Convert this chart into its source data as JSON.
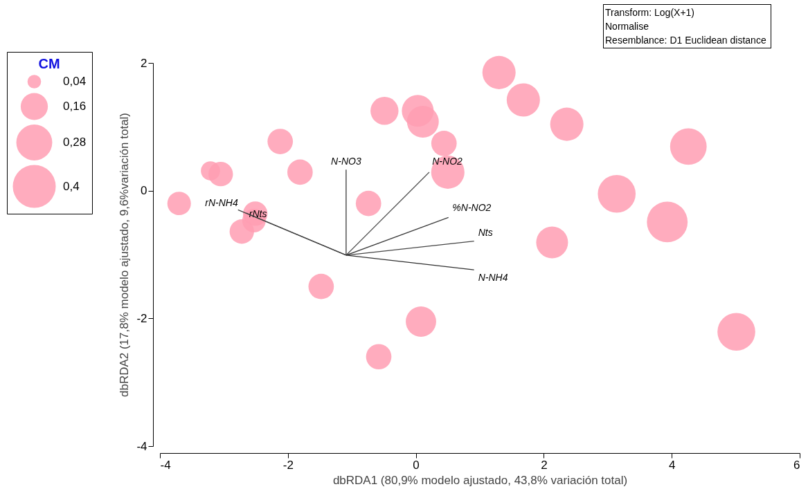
{
  "chart_data": {
    "type": "bubble",
    "xlabel": "dbRDA1 (80,9% modelo ajustado, 43,8% variación total)",
    "ylabel": "dbRDA2 (17,8% modelo ajustado, 9,6%variación total)",
    "legend_title": "CM",
    "legend": "left",
    "grid": false,
    "xlim": [
      -4,
      6
    ],
    "xticks": [
      -4,
      -2,
      0,
      2,
      4,
      6
    ],
    "ylim": [
      -4,
      2
    ],
    "yticks": [
      -4,
      -2,
      0,
      2
    ],
    "size_legend": [
      {
        "value": 0.04,
        "label": "0,04"
      },
      {
        "value": 0.16,
        "label": "0,16"
      },
      {
        "value": 0.28,
        "label": "0,28"
      },
      {
        "value": 0.4,
        "label": "0,4"
      }
    ],
    "annotations": [
      "Transform: Log(X+1)",
      "Normalise",
      "Resemblance: D1 Euclidean distance"
    ],
    "series": [
      {
        "color": "#ff9db3",
        "x": [
          -0.49,
          0.03,
          0.11,
          0.44,
          0.5,
          -2.12,
          -3.21,
          -3.05,
          -1.81,
          -3.7,
          -2.51,
          -2.53,
          -2.72,
          -0.74,
          -1.48,
          0.08,
          -0.58,
          1.3,
          1.68,
          2.36,
          4.26,
          3.14,
          3.93,
          2.13,
          5.01
        ],
        "values": [
          1.25,
          1.25,
          1.08,
          0.74,
          0.29,
          0.77,
          0.31,
          0.26,
          0.29,
          -0.2,
          -0.36,
          -0.47,
          -0.64,
          -0.2,
          -1.5,
          -2.05,
          -2.6,
          1.85,
          1.42,
          1.04,
          0.69,
          -0.05,
          -0.49,
          -0.81,
          -2.21
        ],
        "sizes": [
          0.17,
          0.22,
          0.22,
          0.14,
          0.24,
          0.14,
          0.08,
          0.13,
          0.14,
          0.12,
          0.13,
          0.12,
          0.13,
          0.14,
          0.14,
          0.2,
          0.14,
          0.24,
          0.24,
          0.24,
          0.29,
          0.31,
          0.36,
          0.22,
          0.31
        ]
      },
      {
        "type": "line",
        "name": "N-NO3",
        "color": "#3a3a3a",
        "x": [
          -1.09,
          -1.09
        ],
        "values": [
          -1.01,
          0.33
        ]
      },
      {
        "type": "line",
        "name": "N-NO2",
        "color": "#4a4a4a",
        "x": [
          -1.09,
          0.21
        ],
        "values": [
          -1.01,
          0.29
        ]
      },
      {
        "type": "line",
        "name": "%N-NO2",
        "color": "#3c3c3c",
        "x": [
          -1.09,
          0.51
        ],
        "values": [
          -1.01,
          -0.42
        ]
      },
      {
        "type": "line",
        "name": "Nts",
        "color": "#444444",
        "x": [
          -1.09,
          0.91
        ],
        "values": [
          -1.01,
          -0.79
        ]
      },
      {
        "type": "line",
        "name": "N-NH4",
        "color": "#303030",
        "x": [
          -1.09,
          0.91
        ],
        "values": [
          -1.01,
          -1.24
        ]
      },
      {
        "type": "line",
        "name": "rNts",
        "color": "#555555",
        "x": [
          -1.09,
          -2.65
        ],
        "values": [
          -1.01,
          -0.35
        ]
      },
      {
        "type": "line",
        "name": "rN-NH4",
        "color": "#404040",
        "x": [
          -1.09,
          -2.78
        ],
        "values": [
          -1.01,
          -0.3
        ]
      }
    ]
  }
}
